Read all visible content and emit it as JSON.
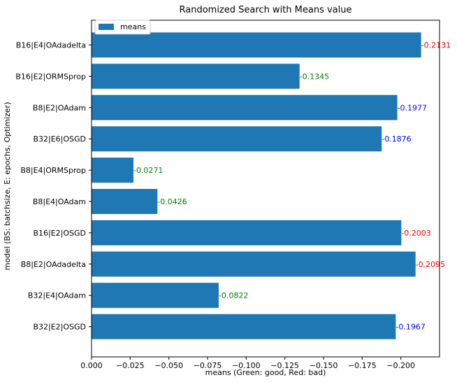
{
  "chart_data": {
    "type": "bar",
    "orientation": "horizontal",
    "title": "Randomized Search with Means value",
    "xlabel": "means (Green: good, Red: bad)",
    "ylabel": "model (BS: batchsize, E: epochs, Optimizer)",
    "xlim": [
      0.0,
      -0.225
    ],
    "x_ticks": [
      "0.000",
      "−0.025",
      "−0.050",
      "−0.075",
      "−0.100",
      "−0.125",
      "−0.150",
      "−0.175",
      "−0.200"
    ],
    "x_tick_values": [
      0.0,
      -0.025,
      -0.05,
      -0.075,
      -0.1,
      -0.125,
      -0.15,
      -0.175,
      -0.2
    ],
    "legend": {
      "placement": "top-left",
      "entries": [
        "means"
      ]
    },
    "grid": false,
    "bar_color": "#1f77b4",
    "categories": [
      "B16|E4|OAdadelta",
      "B16|E2|ORMSprop",
      "B8|E2|OAdam",
      "B32|E6|OSGD",
      "B8|E4|ORMSprop",
      "B8|E4|OAdam",
      "B16|E2|OSGD",
      "B8|E2|OAdadelta",
      "B32|E4|OAdam",
      "B32|E2|OSGD"
    ],
    "values": [
      -0.2131,
      -0.1345,
      -0.1977,
      -0.1876,
      -0.0271,
      -0.0426,
      -0.2003,
      -0.2095,
      -0.0822,
      -0.1967
    ],
    "labels": [
      "-0.2131",
      "-0.1345",
      "-0.1977",
      "-0.1876",
      "-0.0271",
      "-0.0426",
      "-0.2003",
      "-0.2095",
      "-0.0822",
      "-0.1967"
    ],
    "label_colors": [
      "#ff0000",
      "#008000",
      "#0000ff",
      "#0000ff",
      "#008000",
      "#008000",
      "#ff0000",
      "#ff0000",
      "#008000",
      "#0000ff"
    ]
  }
}
